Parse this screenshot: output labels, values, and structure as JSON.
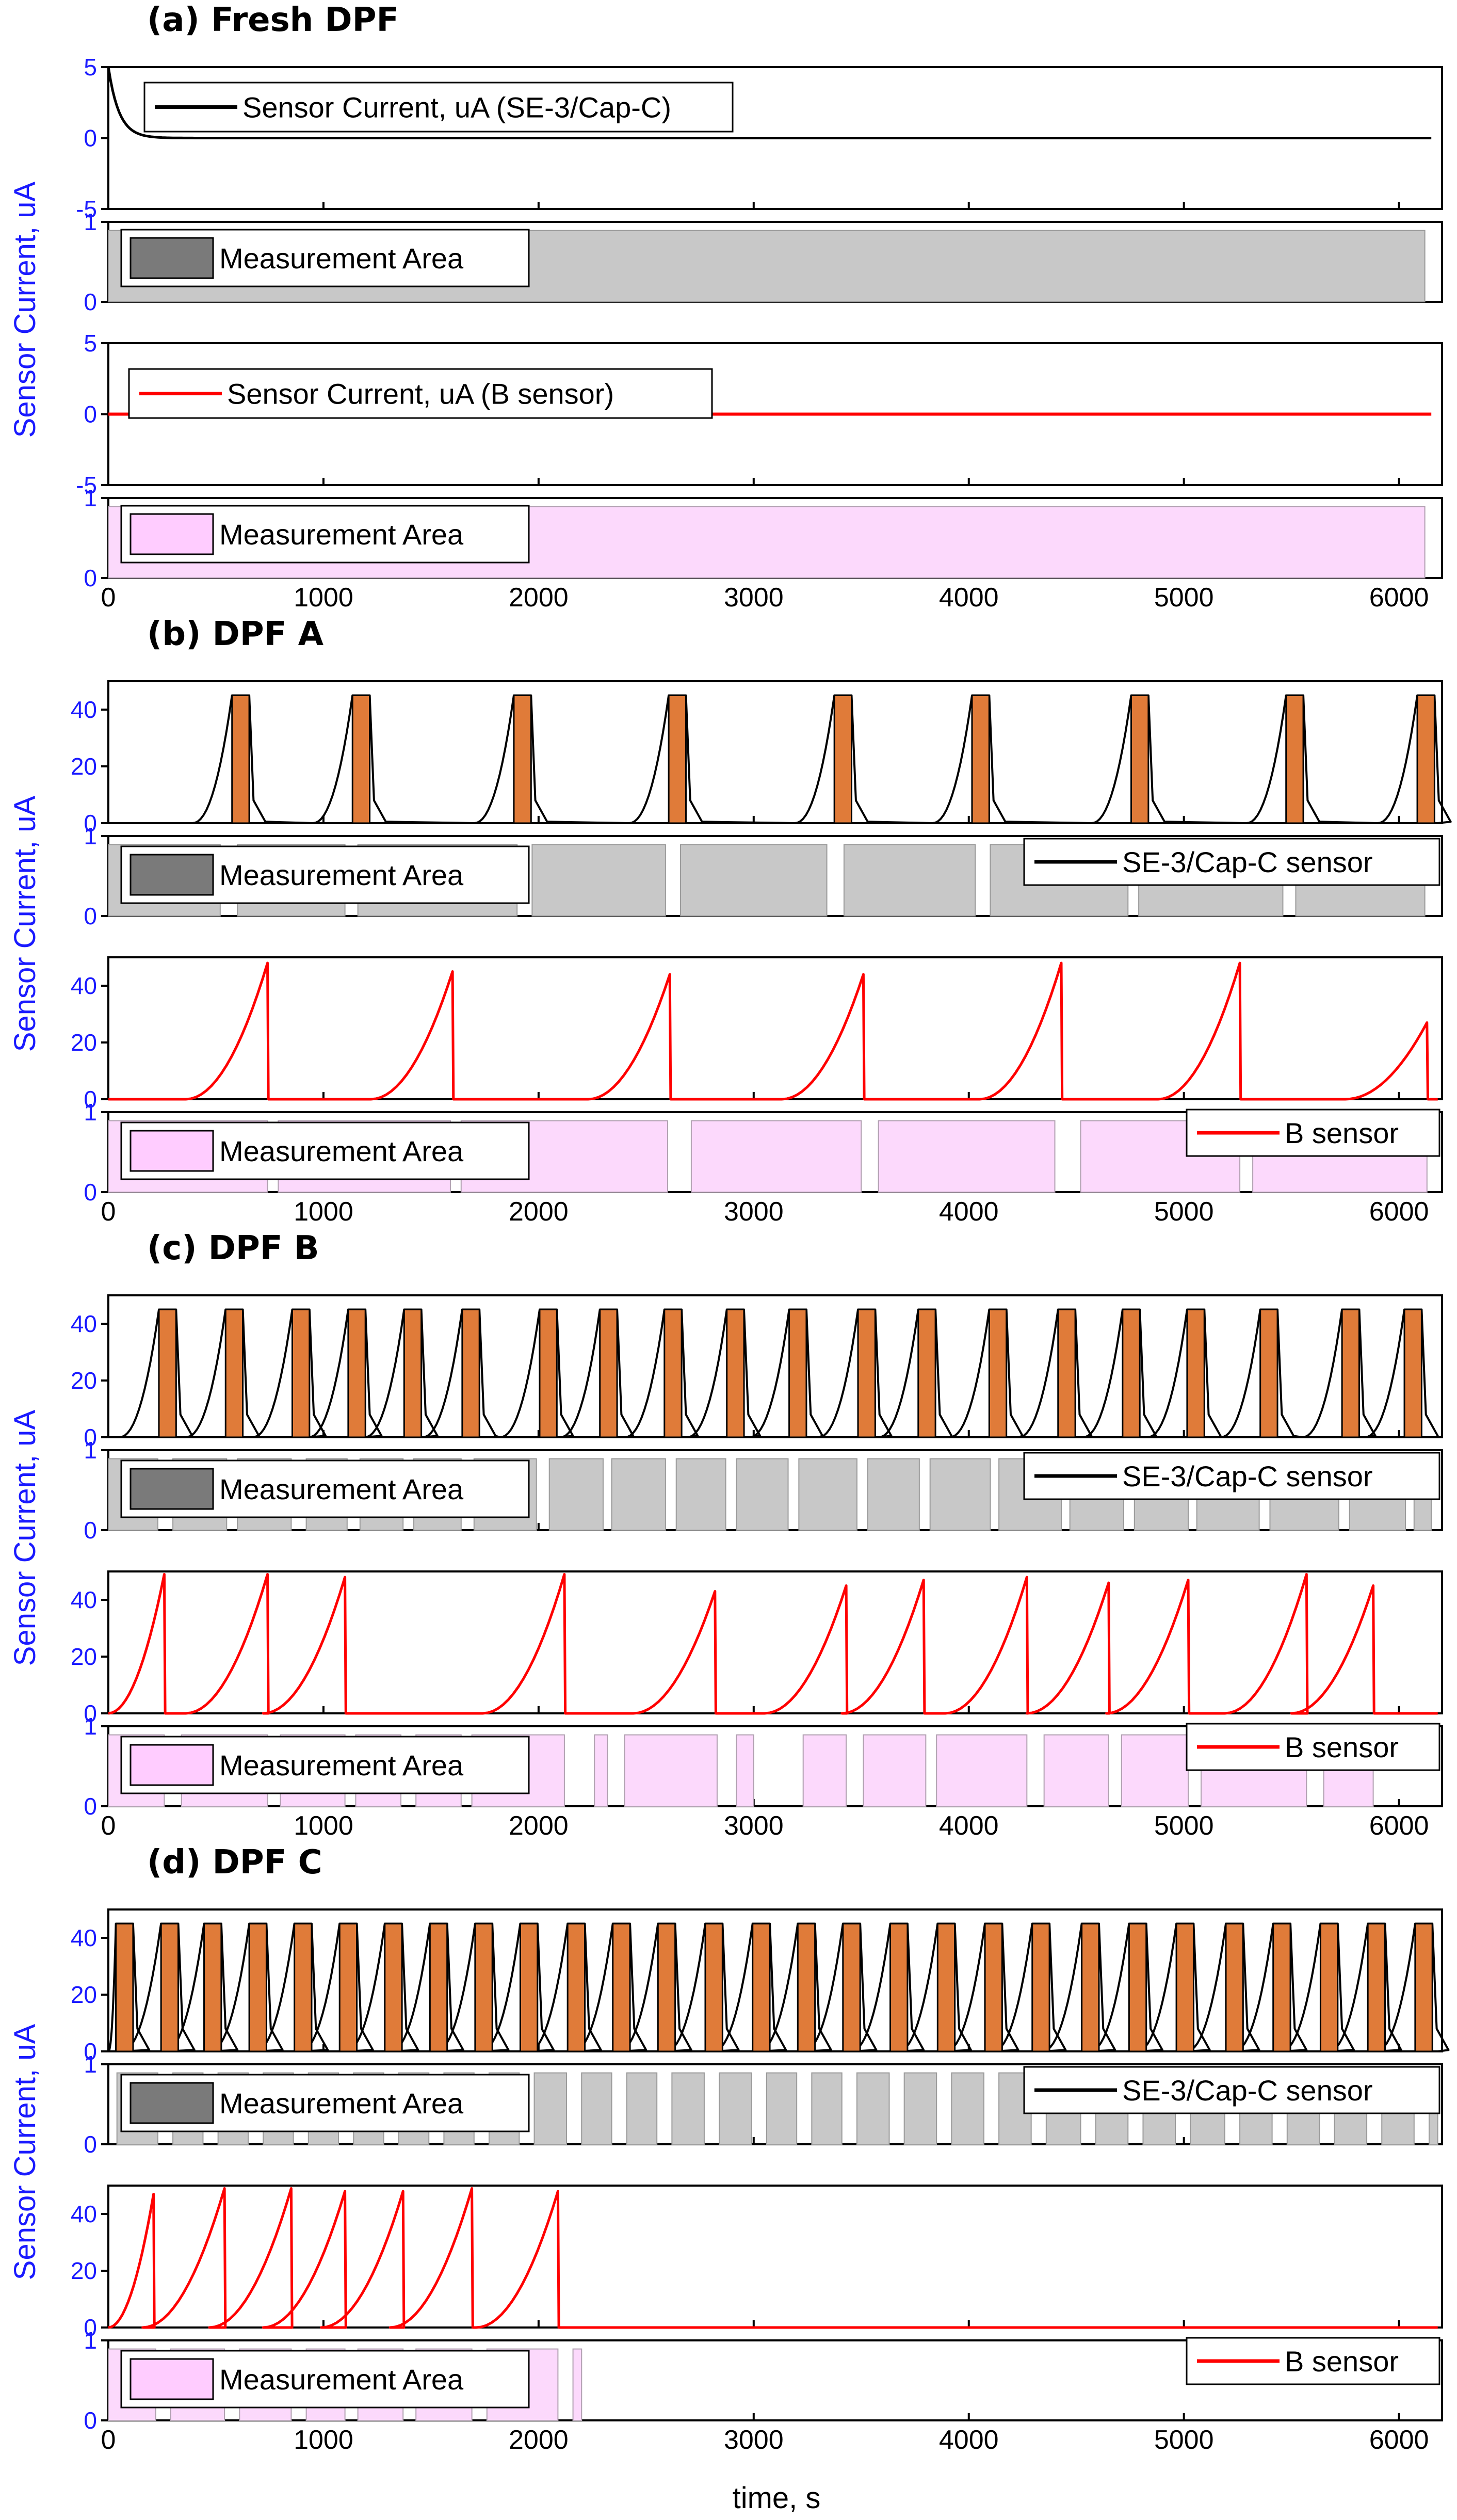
{
  "chart_data": {
    "type": "line",
    "xlabel": "time, s",
    "ylabel": "Sensor Current, uA",
    "xlim": [
      0,
      6200
    ],
    "x_ticks": [
      "0",
      "1000",
      "2000",
      "3000",
      "4000",
      "5000",
      "6000"
    ],
    "colors": {
      "black_trace": "#000000",
      "red_trace": "#ff0000",
      "orange_window": "#e07b39",
      "gray_area": "#c8c8c8",
      "gray_legend": "#7a7a7a",
      "pink_area": "#fcd9fc",
      "pink_legend": "#ffccff",
      "tick_blue": "#1a1aff"
    },
    "panels": [
      {
        "id": "a",
        "title": "(a) Fresh DPF",
        "sc_legend": "Sensor Current, uA (SE-3/Cap-C)",
        "b_legend": "Sensor Current, uA (B sensor)",
        "area_legend": "Measurement Area",
        "sc_ylim": [
          -5,
          5
        ],
        "sc_yticks": [
          "5",
          "0",
          "-5"
        ],
        "b_ylim": [
          -5,
          5
        ],
        "b_yticks": [
          "5",
          "0",
          "-5"
        ],
        "area_yticks": [
          "1",
          "0"
        ],
        "sc_curve": {
          "start": 5,
          "decay_s": 50,
          "end": 6150
        },
        "b_curve": {
          "level": 0,
          "end": 6150
        },
        "sc_areas": [
          [
            0,
            6120
          ]
        ],
        "b_areas": [
          [
            0,
            6120
          ]
        ]
      },
      {
        "id": "b",
        "title": "(b) DPF A",
        "sc_legend": "SE-3/Cap-C sensor",
        "b_legend": "B sensor",
        "area_legend": "Measurement Area",
        "sc_ylim": [
          0,
          50
        ],
        "sc_yticks": [
          "40",
          "20",
          "0"
        ],
        "b_ylim": [
          0,
          50
        ],
        "b_yticks": [
          "40",
          "20",
          "0"
        ],
        "area_yticks": [
          "1",
          "0"
        ],
        "sc_peaks": [
          620,
          1180,
          1930,
          2650,
          3420,
          4060,
          4800,
          5520,
          6130
        ],
        "b_peaks": [
          [
            740,
            48
          ],
          [
            1600,
            45
          ],
          [
            2610,
            44
          ],
          [
            3510,
            44
          ],
          [
            4430,
            48
          ],
          [
            5260,
            48
          ],
          [
            6130,
            27
          ]
        ],
        "sc_areas": [
          [
            0,
            520
          ],
          [
            600,
            1100
          ],
          [
            1160,
            1900
          ],
          [
            1970,
            2590
          ],
          [
            2660,
            3340
          ],
          [
            3420,
            4030
          ],
          [
            4100,
            4740
          ],
          [
            4790,
            5460
          ],
          [
            5520,
            6120
          ]
        ],
        "b_areas": [
          [
            0,
            740
          ],
          [
            790,
            1590
          ],
          [
            1640,
            2600
          ],
          [
            2710,
            3500
          ],
          [
            3580,
            4400
          ],
          [
            4520,
            5260
          ],
          [
            5320,
            6130
          ]
        ]
      },
      {
        "id": "c",
        "title": "(c) DPF B",
        "sc_legend": "SE-3/Cap-C sensor",
        "b_legend": "B sensor",
        "area_legend": "Measurement Area",
        "sc_ylim": [
          0,
          50
        ],
        "sc_yticks": [
          "40",
          "20",
          "0"
        ],
        "b_ylim": [
          0,
          50
        ],
        "b_yticks": [
          "40",
          "20",
          "0"
        ],
        "area_yticks": [
          "1",
          "0"
        ],
        "sc_peaks": [
          280,
          590,
          900,
          1160,
          1420,
          1690,
          2050,
          2330,
          2630,
          2920,
          3210,
          3530,
          3810,
          4140,
          4460,
          4760,
          5060,
          5400,
          5780,
          6070
        ],
        "b_peaks": [
          [
            260,
            49
          ],
          [
            740,
            49
          ],
          [
            1100,
            48
          ],
          [
            2120,
            49
          ],
          [
            2820,
            43
          ],
          [
            3430,
            45
          ],
          [
            3790,
            47
          ],
          [
            4270,
            48
          ],
          [
            4650,
            46
          ],
          [
            5020,
            47
          ],
          [
            5570,
            49
          ],
          [
            5880,
            45
          ]
        ],
        "sc_areas": [
          [
            0,
            230
          ],
          [
            300,
            550
          ],
          [
            600,
            850
          ],
          [
            920,
            1110
          ],
          [
            1170,
            1370
          ],
          [
            1420,
            1640
          ],
          [
            1700,
            1990
          ],
          [
            2050,
            2300
          ],
          [
            2340,
            2590
          ],
          [
            2640,
            2870
          ],
          [
            2920,
            3160
          ],
          [
            3210,
            3480
          ],
          [
            3530,
            3770
          ],
          [
            3820,
            4100
          ],
          [
            4140,
            4430
          ],
          [
            4470,
            4720
          ],
          [
            4770,
            5020
          ],
          [
            5060,
            5350
          ],
          [
            5400,
            5720
          ],
          [
            5770,
            6030
          ],
          [
            6070,
            6150
          ]
        ],
        "b_areas": [
          [
            0,
            260
          ],
          [
            340,
            740
          ],
          [
            800,
            1100
          ],
          [
            1150,
            1360
          ],
          [
            1430,
            1640
          ],
          [
            1690,
            2120
          ],
          [
            2260,
            2320
          ],
          [
            2400,
            2830
          ],
          [
            2920,
            3000
          ],
          [
            3230,
            3430
          ],
          [
            3510,
            3800
          ],
          [
            3850,
            4270
          ],
          [
            4350,
            4650
          ],
          [
            4710,
            5020
          ],
          [
            5080,
            5570
          ],
          [
            5650,
            5880
          ]
        ]
      },
      {
        "id": "d",
        "title": "(d) DPF C",
        "sc_legend": "SE-3/Cap-C sensor",
        "b_legend": "B sensor",
        "area_legend": "Measurement Area",
        "sc_ylim": [
          0,
          50
        ],
        "sc_yticks": [
          "40",
          "20",
          "0"
        ],
        "b_ylim": [
          0,
          50
        ],
        "b_yticks": [
          "40",
          "20",
          "0"
        ],
        "area_yticks": [
          "1",
          "0"
        ],
        "sc_peaks": [
          80,
          290,
          490,
          700,
          910,
          1120,
          1330,
          1540,
          1750,
          1960,
          2180,
          2390,
          2600,
          2820,
          3040,
          3250,
          3460,
          3680,
          3900,
          4120,
          4340,
          4570,
          4790,
          5010,
          5240,
          5460,
          5680,
          5900,
          6120
        ],
        "b_peaks": [
          [
            210,
            47
          ],
          [
            540,
            49
          ],
          [
            850,
            49
          ],
          [
            1100,
            48
          ],
          [
            1370,
            48
          ],
          [
            1690,
            49
          ],
          [
            2090,
            48
          ]
        ],
        "sc_areas": [
          [
            40,
            230
          ],
          [
            300,
            440
          ],
          [
            510,
            650
          ],
          [
            720,
            860
          ],
          [
            930,
            1070
          ],
          [
            1140,
            1280
          ],
          [
            1350,
            1490
          ],
          [
            1560,
            1700
          ],
          [
            1770,
            1910
          ],
          [
            1980,
            2130
          ],
          [
            2200,
            2340
          ],
          [
            2410,
            2550
          ],
          [
            2620,
            2770
          ],
          [
            2840,
            2990
          ],
          [
            3060,
            3200
          ],
          [
            3270,
            3410
          ],
          [
            3480,
            3630
          ],
          [
            3700,
            3850
          ],
          [
            3920,
            4070
          ],
          [
            4140,
            4290
          ],
          [
            4360,
            4520
          ],
          [
            4590,
            4740
          ],
          [
            4810,
            4960
          ],
          [
            5030,
            5190
          ],
          [
            5260,
            5410
          ],
          [
            5480,
            5630
          ],
          [
            5700,
            5850
          ],
          [
            5920,
            6070
          ],
          [
            6140,
            6180
          ]
        ],
        "b_areas": [
          [
            0,
            220
          ],
          [
            290,
            540
          ],
          [
            610,
            850
          ],
          [
            920,
            1100
          ],
          [
            1160,
            1370
          ],
          [
            1430,
            1690
          ],
          [
            1760,
            2090
          ],
          [
            2160,
            2200
          ]
        ]
      }
    ]
  }
}
